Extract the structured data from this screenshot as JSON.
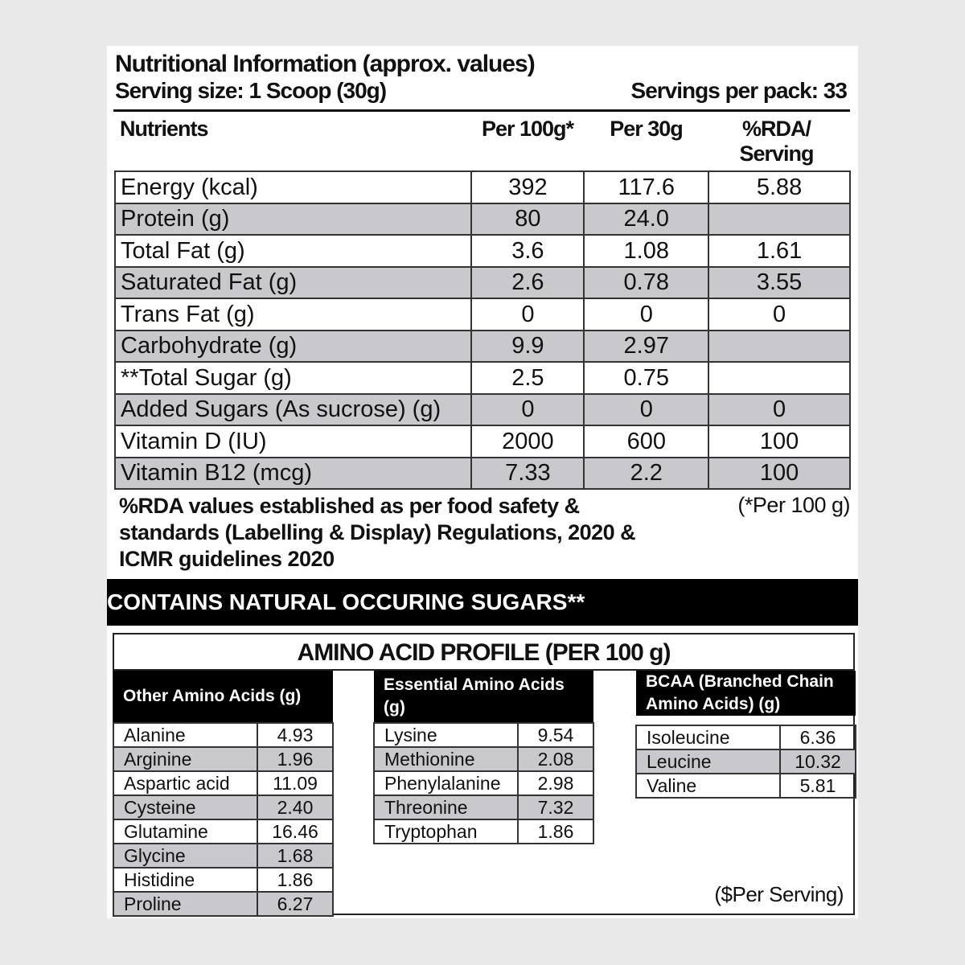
{
  "header": {
    "title": "Nutritional Information (approx. values)",
    "serving_size": "Serving size: 1 Scoop (30g)",
    "servings_per_pack": "Servings per pack: 33"
  },
  "nutrition_table": {
    "columns": [
      "Nutrients",
      "Per 100g*",
      "Per 30g",
      "%RDA/ Serving"
    ],
    "rows": [
      [
        "Energy (kcal)",
        "392",
        "117.6",
        "5.88"
      ],
      [
        "Protein (g)",
        "80",
        "24.0",
        ""
      ],
      [
        "Total Fat (g)",
        "3.6",
        "1.08",
        "1.61"
      ],
      [
        "Saturated Fat (g)",
        "2.6",
        "0.78",
        "3.55"
      ],
      [
        "Trans Fat (g)",
        "0",
        "0",
        "0"
      ],
      [
        "Carbohydrate (g)",
        "9.9",
        "2.97",
        ""
      ],
      [
        "**Total Sugar (g)",
        "2.5",
        "0.75",
        ""
      ],
      [
        "Added Sugars (As sucrose) (g)",
        "0",
        "0",
        "0"
      ],
      [
        "Vitamin D (IU)",
        "2000",
        "600",
        "100"
      ],
      [
        "Vitamin B12 (mcg)",
        "7.33",
        "2.2",
        "100"
      ]
    ]
  },
  "footnote": "%RDA values established as per food safety & standards (Labelling & Display) Regulations, 2020 & ICMR guidelines 2020",
  "footnote_per": "(*Per 100 g)",
  "banner": "CONTAINS NATURAL OCCURING SUGARS**",
  "amino": {
    "title": "AMINO ACID PROFILE (PER 100 g)",
    "other": {
      "header": "Other Amino Acids (g)",
      "rows": [
        [
          "Alanine",
          "4.93"
        ],
        [
          "Arginine",
          "1.96"
        ],
        [
          "Aspartic acid",
          "11.09"
        ],
        [
          "Cysteine",
          "2.40"
        ],
        [
          "Glutamine",
          "16.46"
        ],
        [
          "Glycine",
          "1.68"
        ],
        [
          "Histidine",
          "1.86"
        ],
        [
          "Proline",
          "6.27"
        ]
      ]
    },
    "essential": {
      "header": "Essential Amino Acids (g)",
      "rows": [
        [
          "Lysine",
          "9.54"
        ],
        [
          "Methionine",
          "2.08"
        ],
        [
          "Phenylalanine",
          "2.98"
        ],
        [
          "Threonine",
          "7.32"
        ],
        [
          "Tryptophan",
          "1.86"
        ]
      ]
    },
    "bcaa": {
      "header": "BCAA (Branched Chain Amino Acids) (g)",
      "rows": [
        [
          "Isoleucine",
          "6.36"
        ],
        [
          "Leucine",
          "10.32"
        ],
        [
          "Valine",
          "5.81"
        ]
      ]
    },
    "per_serving": "($Per Serving)"
  },
  "colors": {
    "stripe": "#c9c8cd",
    "banner": "#000000"
  }
}
